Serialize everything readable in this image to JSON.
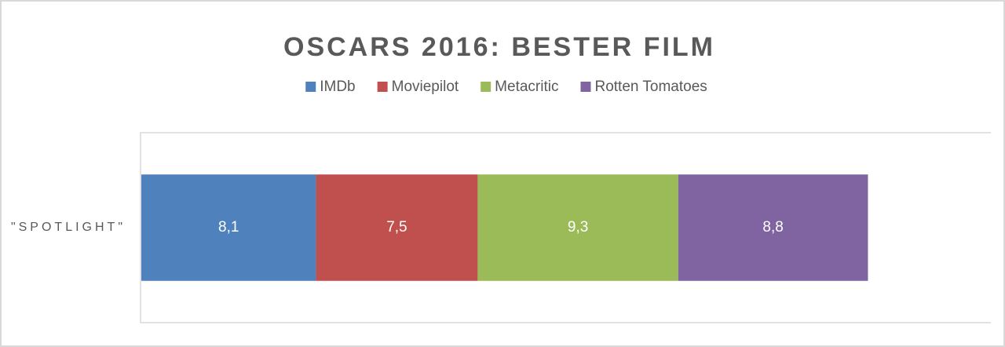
{
  "chart_data": {
    "type": "bar",
    "orientation": "horizontal",
    "stacked": true,
    "title": "OSCARS 2016: BESTER FILM",
    "categories": [
      "\"SPOTLIGHT\""
    ],
    "series": [
      {
        "name": "IMDb",
        "color": "#4f81bd",
        "values": [
          8.1
        ],
        "value_labels": [
          "8,1"
        ]
      },
      {
        "name": "Moviepilot",
        "color": "#c0504d",
        "values": [
          7.5
        ],
        "value_labels": [
          "7,5"
        ]
      },
      {
        "name": "Metacritic",
        "color": "#9bbb59",
        "values": [
          9.3
        ],
        "value_labels": [
          "9,3"
        ]
      },
      {
        "name": "Rotten Tomatoes",
        "color": "#8064a2",
        "values": [
          8.8
        ],
        "value_labels": [
          "8,8"
        ]
      }
    ],
    "xlim": [
      0,
      39.4
    ],
    "legend": "top"
  }
}
